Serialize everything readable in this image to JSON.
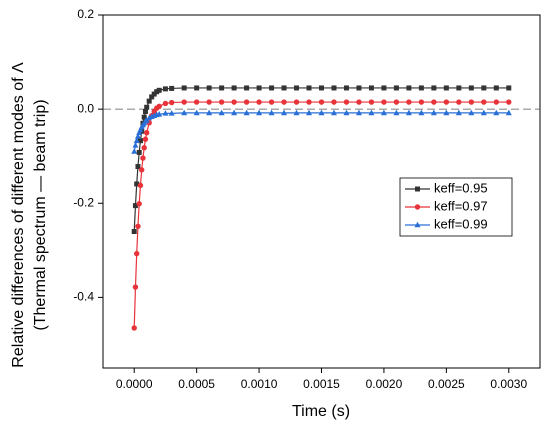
{
  "chart_data": {
    "type": "line",
    "xlabel": "Time (s)",
    "ylabel": [
      "Relative differences of different modes of Λ",
      "(Thermal spectrum — beam trip)"
    ],
    "x": [
      0,
      1e-05,
      2e-05,
      3e-05,
      4e-05,
      5e-05,
      6e-05,
      7e-05,
      8e-05,
      9e-05,
      0.0001,
      0.00012,
      0.00014,
      0.00016,
      0.00018,
      0.0002,
      0.00025,
      0.0003,
      0.0004,
      0.0005,
      0.0006,
      0.0007,
      0.0008,
      0.0009,
      0.001,
      0.0011,
      0.0012,
      0.0013,
      0.0014,
      0.0015,
      0.0016,
      0.0017,
      0.0018,
      0.0019,
      0.002,
      0.0021,
      0.0022,
      0.0023,
      0.0024,
      0.0025,
      0.0026,
      0.0027,
      0.0028,
      0.0029,
      0.003
    ],
    "series": [
      {
        "name": "keff=0.95",
        "color": "#333333",
        "marker": "square",
        "values": [
          -0.26,
          -0.205,
          -0.159,
          -0.122,
          -0.092,
          -0.067,
          -0.047,
          -0.03,
          -0.017,
          -0.005,
          0.004,
          0.017,
          0.026,
          0.032,
          0.037,
          0.04,
          0.043,
          0.044,
          0.045,
          0.045,
          0.045,
          0.045,
          0.045,
          0.045,
          0.045,
          0.045,
          0.045,
          0.045,
          0.045,
          0.045,
          0.045,
          0.045,
          0.045,
          0.045,
          0.045,
          0.045,
          0.045,
          0.045,
          0.045,
          0.045,
          0.045,
          0.045,
          0.045,
          0.045,
          0.045
        ]
      },
      {
        "name": "keff=0.97",
        "color": "#e8333a",
        "marker": "circle",
        "values": [
          -0.465,
          -0.378,
          -0.307,
          -0.249,
          -0.201,
          -0.162,
          -0.129,
          -0.104,
          -0.082,
          -0.064,
          -0.05,
          -0.029,
          -0.014,
          -0.005,
          0.002,
          0.006,
          0.012,
          0.014,
          0.015,
          0.015,
          0.015,
          0.015,
          0.015,
          0.015,
          0.015,
          0.015,
          0.015,
          0.015,
          0.015,
          0.015,
          0.015,
          0.015,
          0.015,
          0.015,
          0.015,
          0.015,
          0.015,
          0.015,
          0.015,
          0.015,
          0.015,
          0.015,
          0.015,
          0.015,
          0.015
        ]
      },
      {
        "name": "keff=0.99",
        "color": "#2a6fd6",
        "marker": "triangle",
        "values": [
          -0.09,
          -0.077,
          -0.067,
          -0.058,
          -0.05,
          -0.044,
          -0.038,
          -0.034,
          -0.03,
          -0.026,
          -0.024,
          -0.019,
          -0.016,
          -0.014,
          -0.012,
          -0.011,
          -0.009,
          -0.009,
          -0.008,
          -0.008,
          -0.008,
          -0.008,
          -0.008,
          -0.008,
          -0.008,
          -0.008,
          -0.008,
          -0.008,
          -0.008,
          -0.008,
          -0.008,
          -0.008,
          -0.008,
          -0.008,
          -0.008,
          -0.008,
          -0.008,
          -0.008,
          -0.008,
          -0.008,
          -0.008,
          -0.008,
          -0.008,
          -0.008,
          -0.008
        ]
      }
    ],
    "xlim": [
      -0.00025,
      0.00325
    ],
    "xticks": [
      {
        "value": 0,
        "label": "0.0000"
      },
      {
        "value": 0.0005,
        "label": "0.0005"
      },
      {
        "value": 0.001,
        "label": "0.0010"
      },
      {
        "value": 0.0015,
        "label": "0.0015"
      },
      {
        "value": 0.002,
        "label": "0.0020"
      },
      {
        "value": 0.0025,
        "label": "0.0025"
      },
      {
        "value": 0.003,
        "label": "0.0030"
      }
    ],
    "ylim": [
      -0.55,
      0.2
    ],
    "yticks": [
      -0.4,
      -0.2,
      {
        "value": 0,
        "label": "0.0"
      },
      0.2
    ],
    "reference_line": 0,
    "grid": false,
    "legend": "right"
  }
}
